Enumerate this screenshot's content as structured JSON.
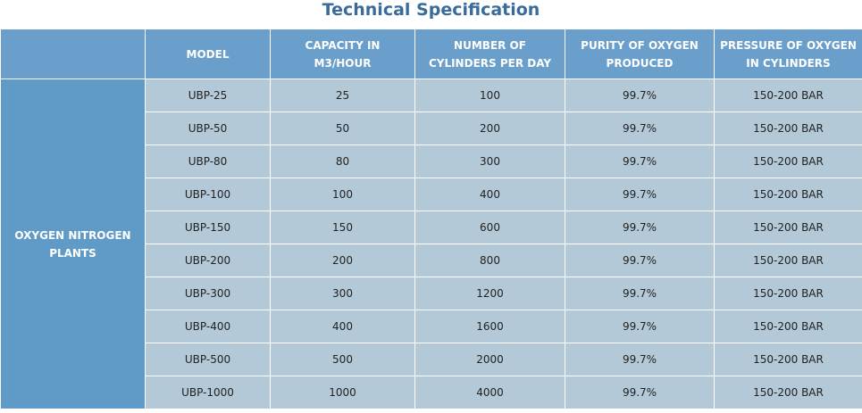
{
  "title": "Technical Specification",
  "table": {
    "headers": [
      "",
      [
        "MODEL"
      ],
      [
        "CAPACITY IN",
        "M3/HOUR"
      ],
      [
        "NUMBER OF",
        "CYLINDERS PER DAY"
      ],
      [
        "PURITY OF OXYGEN",
        "PRODUCED"
      ],
      [
        "PRESSURE OF OXYGEN",
        "IN CYLINDERS"
      ]
    ],
    "group_label": [
      "OXYGEN NITROGEN",
      "PLANTS"
    ],
    "rows": [
      [
        "UBP-25",
        "25",
        "100",
        "99.7%",
        "150-200 BAR"
      ],
      [
        "UBP-50",
        "50",
        "200",
        "99.7%",
        "150-200 BAR"
      ],
      [
        "UBP-80",
        "80",
        "300",
        "99.7%",
        "150-200 BAR"
      ],
      [
        "UBP-100",
        "100",
        "400",
        "99.7%",
        "150-200 BAR"
      ],
      [
        "UBP-150",
        "150",
        "600",
        "99.7%",
        "150-200 BAR"
      ],
      [
        "UBP-200",
        "200",
        "800",
        "99.7%",
        "150-200 BAR"
      ],
      [
        "UBP-300",
        "300",
        "1200",
        "99.7%",
        "150-200 BAR"
      ],
      [
        "UBP-400",
        "400",
        "1600",
        "99.7%",
        "150-200 BAR"
      ],
      [
        "UBP-500",
        "500",
        "2000",
        "99.7%",
        "150-200 BAR"
      ],
      [
        "UBP-1000",
        "1000",
        "4000",
        "99.7%",
        "150-200 BAR"
      ]
    ]
  },
  "colors": {
    "title": "#3b6b9a",
    "header_bg": "#6a9fcb",
    "group_bg": "#5f9bc6",
    "cell_bg": "#b3c9d7"
  }
}
